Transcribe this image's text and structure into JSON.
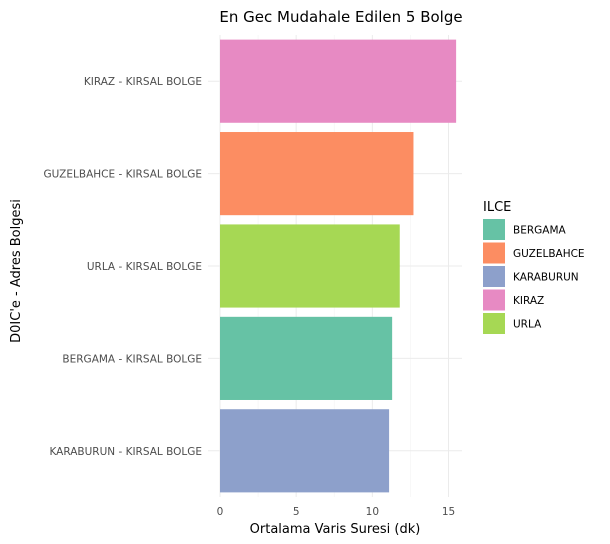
{
  "chart_data": {
    "type": "bar",
    "orientation": "horizontal",
    "title": "En Gec Mudahale Edilen 5 Bolge",
    "xlabel": "Ortalama Varis Suresi (dk)",
    "ylabel": "D0IC'e - Adres Bolgesi",
    "xlim": [
      0,
      16
    ],
    "xticks": [
      "0",
      "5",
      "10",
      "15"
    ],
    "grid": true,
    "categories": [
      "KIRAZ - KIRSAL BOLGE",
      "GUZELBAHCE - KIRSAL BOLGE",
      "URLA - KIRSAL BOLGE",
      "BERGAMA - KIRSAL BOLGE",
      "KARABURUN - KIRSAL BOLGE"
    ],
    "values": [
      15.5,
      12.7,
      11.8,
      11.3,
      11.1
    ],
    "bar_fill_group": [
      "KIRAZ",
      "GUZELBAHCE",
      "URLA",
      "BERGAMA",
      "KARABURUN"
    ],
    "legend": {
      "title": "ILCE",
      "position": "right",
      "items": [
        {
          "label": "BERGAMA",
          "color": "#66c2a5"
        },
        {
          "label": "GUZELBAHCE",
          "color": "#fc8d62"
        },
        {
          "label": "KARABURUN",
          "color": "#8da0cb"
        },
        {
          "label": "KIRAZ",
          "color": "#e78ac3"
        },
        {
          "label": "URLA",
          "color": "#a6d854"
        }
      ]
    }
  }
}
